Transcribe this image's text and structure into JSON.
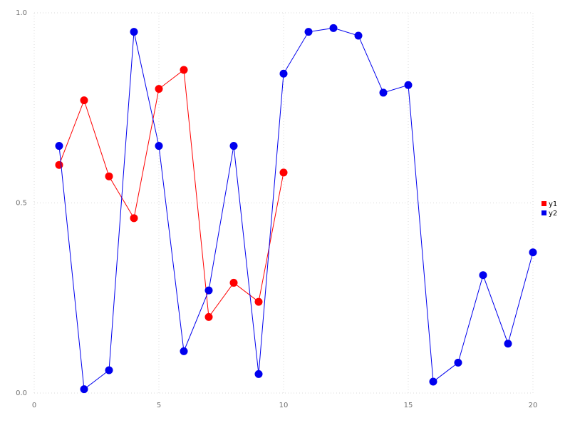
{
  "chart_data": {
    "type": "line",
    "title": "",
    "xlabel": "",
    "ylabel": "",
    "xlim": [
      0,
      20
    ],
    "ylim": [
      0.0,
      1.0
    ],
    "xticks": [
      0,
      5,
      10,
      15,
      20
    ],
    "xtick_labels": [
      "0",
      "5",
      "10",
      "15",
      "20"
    ],
    "yticks": [
      0.0,
      0.5,
      1.0
    ],
    "ytick_labels": [
      "0.0",
      "0.5",
      "1.0"
    ],
    "grid": "dotted",
    "grid_color": "#d8d8d8",
    "background_color": "#ffffff",
    "legend_position": "right",
    "x": [
      1,
      2,
      3,
      4,
      5,
      6,
      7,
      8,
      9,
      10,
      11,
      12,
      13,
      14,
      15,
      16,
      17,
      18,
      19,
      20
    ],
    "series": [
      {
        "name": "y1",
        "color": "#ff0000",
        "marker": "circle",
        "x": [
          1,
          2,
          3,
          4,
          5,
          6,
          7,
          8,
          9,
          10
        ],
        "values": [
          0.6,
          0.77,
          0.57,
          0.46,
          0.8,
          0.85,
          0.2,
          0.29,
          0.24,
          0.58
        ]
      },
      {
        "name": "y2",
        "color": "#0000ee",
        "marker": "circle",
        "x": [
          1,
          2,
          3,
          4,
          5,
          6,
          7,
          8,
          9,
          10,
          11,
          12,
          13,
          14,
          15,
          16,
          17,
          18,
          19,
          20
        ],
        "values": [
          0.65,
          0.01,
          0.06,
          0.95,
          0.65,
          0.11,
          0.27,
          0.65,
          0.05,
          0.84,
          0.95,
          0.96,
          0.94,
          0.79,
          0.81,
          0.03,
          0.08,
          0.31,
          0.13,
          0.37
        ]
      }
    ],
    "legend": [
      {
        "label": "y1",
        "color": "#ff0000"
      },
      {
        "label": "y2",
        "color": "#0000ee"
      }
    ]
  }
}
